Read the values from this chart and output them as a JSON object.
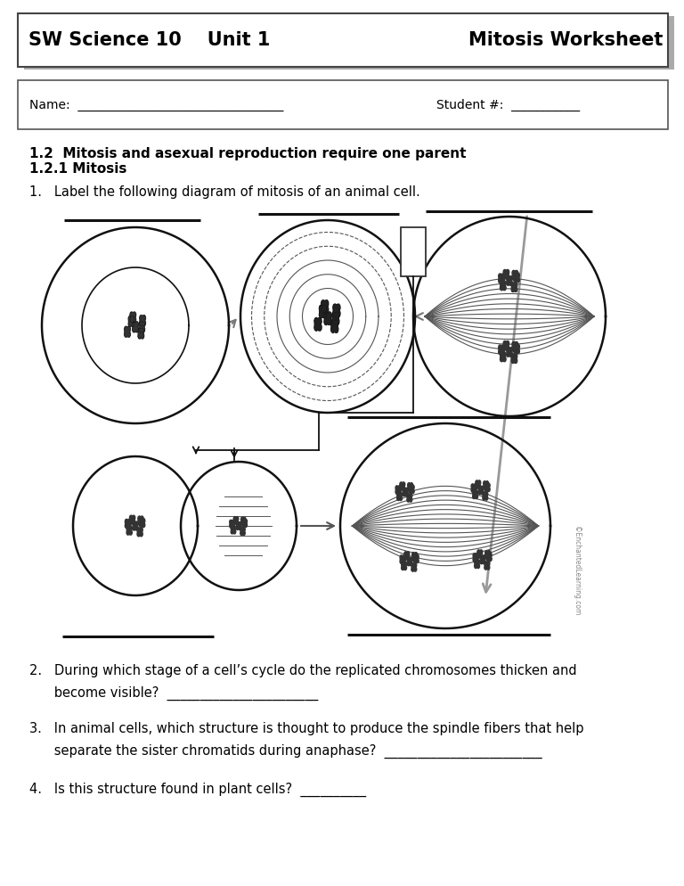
{
  "title_left": "SW Science 10    Unit 1",
  "title_right": "Mitosis Worksheet",
  "title_fontsize": 15,
  "bg_color": "#ffffff",
  "text_color": "#000000",
  "section1": "1.2  Mitosis and asexual reproduction require one parent",
  "section2": "1.2.1 Mitosis",
  "q1": "1.   Label the following diagram of mitosis of an animal cell.",
  "q2_line1": "2.   During which stage of a cell’s cycle do the replicated chromosomes thicken and",
  "q2_line2": "      become visible?  _______________________",
  "q3_line1": "3.   In animal cells, which structure is thought to produce the spindle fibers that help",
  "q3_line2": "      separate the sister chromatids during anaphase?  ________________________",
  "q4": "4.   Is this structure found in plant cells?  __________",
  "name_label": "Name:  _________________________________",
  "student_label": "Student #:  ___________",
  "watermark": "©EnchantedLearning.com",
  "body_fontsize": 10.5,
  "bold_fontsize": 11
}
